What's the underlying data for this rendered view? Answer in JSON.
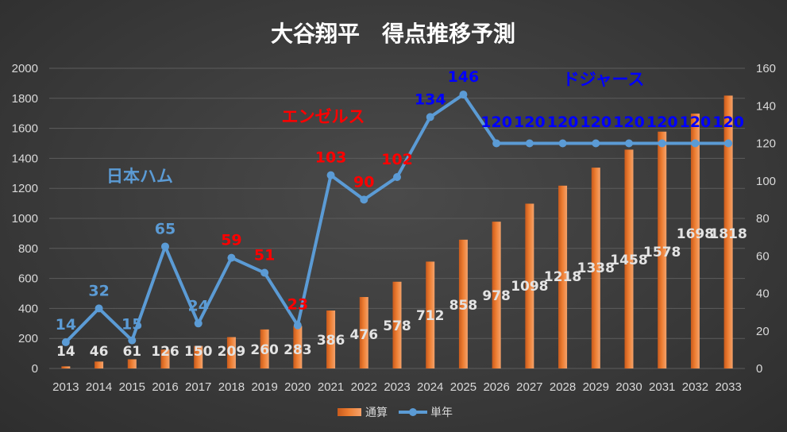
{
  "chart_data": {
    "type": "bar+line",
    "title": "大谷翔平　得点推移予測",
    "categories": [
      "2013",
      "2014",
      "2015",
      "2016",
      "2017",
      "2018",
      "2019",
      "2020",
      "2021",
      "2022",
      "2023",
      "2024",
      "2025",
      "2026",
      "2027",
      "2028",
      "2029",
      "2030",
      "2031",
      "2032",
      "2033"
    ],
    "series": [
      {
        "name": "通算",
        "type": "bar",
        "axis": "left",
        "color": "#ED7D31",
        "values": [
          14,
          46,
          61,
          126,
          150,
          209,
          260,
          283,
          386,
          476,
          578,
          712,
          858,
          978,
          1098,
          1218,
          1338,
          1458,
          1578,
          1698,
          1818
        ]
      },
      {
        "name": "単年",
        "type": "line",
        "axis": "right",
        "color": "#5B9BD5",
        "values": [
          14,
          32,
          15,
          65,
          24,
          59,
          51,
          23,
          103,
          90,
          102,
          134,
          146,
          120,
          120,
          120,
          120,
          120,
          120,
          120,
          120
        ],
        "label_colors": [
          "#5B9BD5",
          "#5B9BD5",
          "#5B9BD5",
          "#5B9BD5",
          "#5B9BD5",
          "#FF0000",
          "#FF0000",
          "#FF0000",
          "#FF0000",
          "#FF0000",
          "#FF0000",
          "#0000FF",
          "#0000FF",
          "#0000FF",
          "#0000FF",
          "#0000FF",
          "#0000FF",
          "#0000FF",
          "#0000FF",
          "#0000FF",
          "#0000FF"
        ]
      }
    ],
    "y_left": {
      "min": 0,
      "max": 2000,
      "step": 200
    },
    "y_right": {
      "min": 0,
      "max": 160,
      "step": 20
    },
    "grid": true,
    "legend_position": "bottom",
    "annotations": [
      {
        "text": "日本ハム",
        "color": "#5B9BD5"
      },
      {
        "text": "エンゼルス",
        "color": "#FF0000"
      },
      {
        "text": "ドジャース",
        "color": "#0000FF"
      }
    ]
  }
}
